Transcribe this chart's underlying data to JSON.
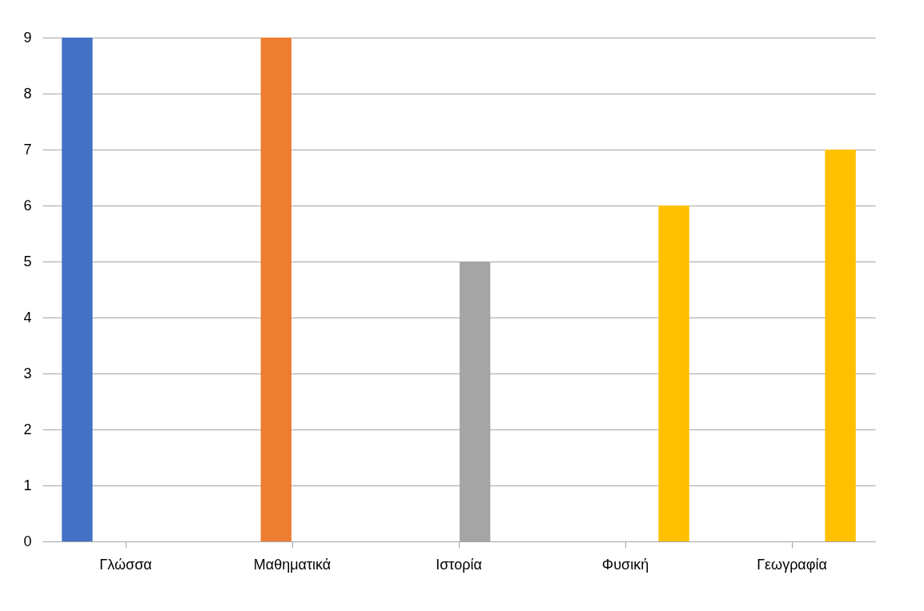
{
  "chart_data": {
    "type": "bar",
    "categories": [
      "Γλώσσα",
      "Μαθηματικά",
      "Ιστορία",
      "Φυσική",
      "Γεωγραφία"
    ],
    "series": [
      {
        "color": "#4472c4",
        "values": [
          9,
          0,
          0,
          0,
          null
        ]
      },
      {
        "color": "#ed7d31",
        "values": [
          0,
          9,
          0,
          0,
          null
        ]
      },
      {
        "color": "#a5a5a5",
        "values": [
          0,
          0,
          5,
          0,
          null
        ]
      },
      {
        "color": "#ffc000",
        "values": [
          null,
          null,
          null,
          6,
          7
        ]
      }
    ],
    "ylim": [
      0,
      9
    ],
    "yticks": [
      0,
      1,
      2,
      3,
      4,
      5,
      6,
      7,
      8,
      9
    ],
    "grid": "y"
  }
}
